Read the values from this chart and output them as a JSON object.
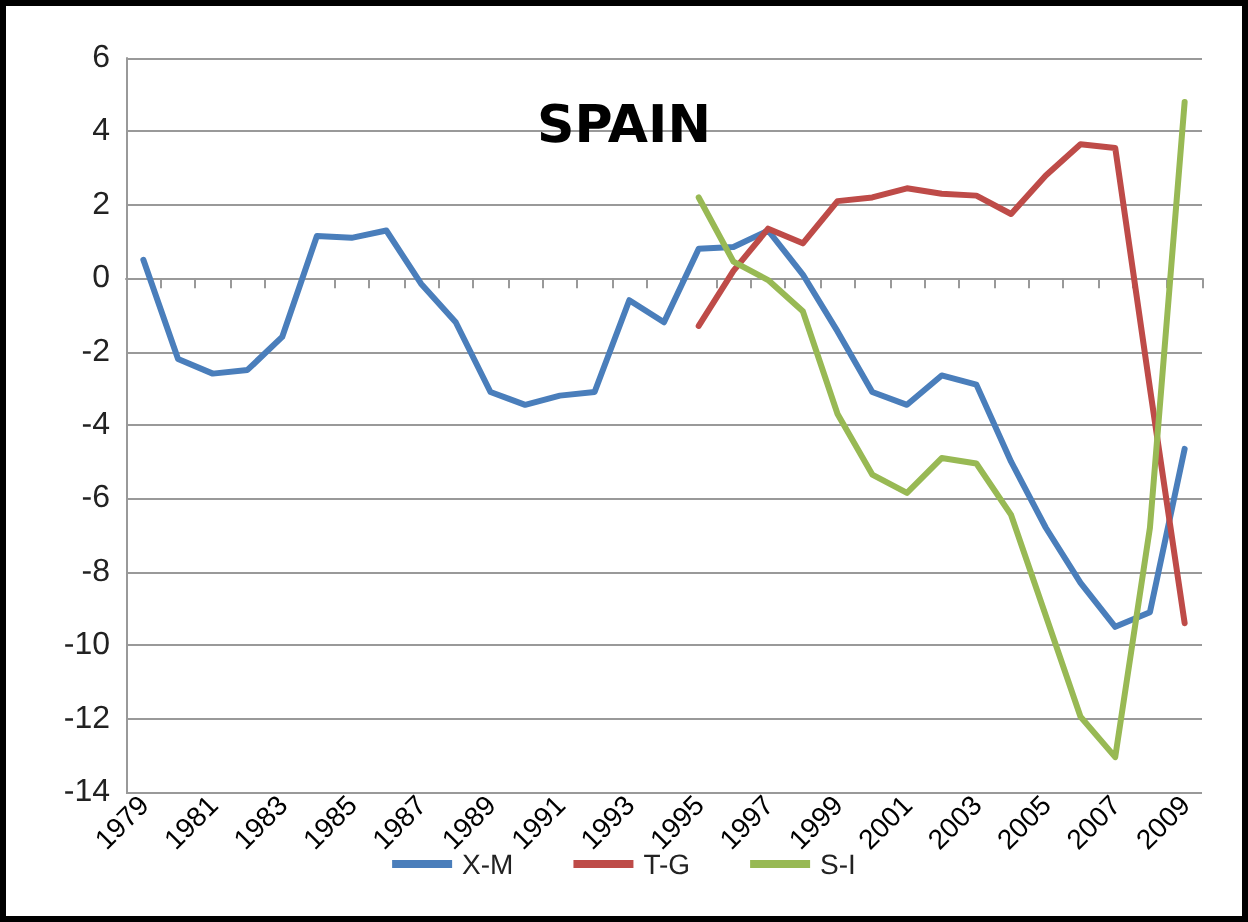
{
  "chart_data": {
    "type": "line",
    "title": "SPAIN",
    "categories": [
      "1979",
      null,
      "1981",
      null,
      "1983",
      null,
      "1985",
      null,
      "1987",
      null,
      "1989",
      null,
      "1991",
      null,
      "1993",
      null,
      "1995",
      null,
      "1997",
      null,
      "1999",
      null,
      "2001",
      null,
      "2003",
      null,
      "2005",
      null,
      "2007",
      null,
      "2009"
    ],
    "series": [
      {
        "name": "X-M",
        "color": "#4a7ebb",
        "values": [
          0.5,
          -2.2,
          -2.6,
          -2.5,
          -1.6,
          1.15,
          1.1,
          1.3,
          -0.15,
          -1.2,
          -3.1,
          -3.45,
          -3.2,
          -3.1,
          -0.6,
          -1.2,
          0.8,
          0.85,
          1.3,
          0.1,
          -1.45,
          -3.1,
          -3.45,
          -2.65,
          -2.9,
          -5.0,
          -6.8,
          -8.3,
          -9.5,
          -9.1,
          -4.65
        ]
      },
      {
        "name": "T-G",
        "color": "#be4b48",
        "values": [
          null,
          null,
          null,
          null,
          null,
          null,
          null,
          null,
          null,
          null,
          null,
          null,
          null,
          null,
          null,
          null,
          -1.3,
          0.2,
          1.35,
          0.95,
          2.1,
          2.2,
          2.45,
          2.3,
          2.25,
          1.75,
          2.8,
          3.65,
          3.55,
          -3.0,
          -9.4
        ]
      },
      {
        "name": "S-I",
        "color": "#98b954",
        "values": [
          null,
          null,
          null,
          null,
          null,
          null,
          null,
          null,
          null,
          null,
          null,
          null,
          null,
          null,
          null,
          null,
          2.2,
          0.45,
          -0.05,
          -0.9,
          -3.7,
          -5.35,
          -5.85,
          -4.9,
          -5.05,
          -6.45,
          -9.2,
          -11.95,
          -13.05,
          -6.8,
          4.8
        ]
      }
    ],
    "ylim": [
      -14,
      6
    ],
    "yticks": [
      -14,
      -12,
      -10,
      -8,
      -6,
      -4,
      -2,
      0,
      2,
      4,
      6
    ],
    "grid": "y",
    "legend": "bottom",
    "marker": "none",
    "line_style": "solid"
  }
}
